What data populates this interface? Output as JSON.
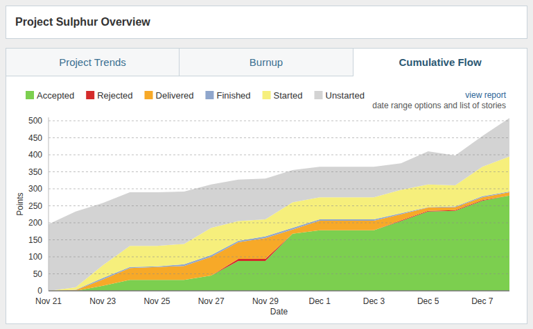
{
  "header": {
    "title": "Project Sulphur Overview"
  },
  "tabs": [
    {
      "label": "Project Trends",
      "active": false
    },
    {
      "label": "Burnup",
      "active": false
    },
    {
      "label": "Cumulative Flow",
      "active": true
    }
  ],
  "report_link": {
    "label": "view report",
    "note": "date range options and list of stories"
  },
  "chart_data": {
    "type": "area",
    "stacked": true,
    "x_label": "Date",
    "y_label": "Points",
    "categories": [
      "Nov 21",
      null,
      "Nov 23",
      null,
      "Nov 25",
      null,
      "Nov 27",
      null,
      "Nov 29",
      null,
      "Dec 1",
      null,
      "Dec 3",
      null,
      "Dec 5",
      null,
      "Dec 7",
      null
    ],
    "series": [
      {
        "name": "Accepted",
        "color": "#7ccf4f",
        "values": [
          0,
          0,
          15,
          32,
          32,
          32,
          45,
          88,
          88,
          168,
          178,
          178,
          178,
          205,
          233,
          235,
          265,
          280
        ]
      },
      {
        "name": "Rejected",
        "color": "#d42b2b",
        "values": [
          0,
          0,
          0,
          0,
          0,
          0,
          0,
          6,
          6,
          0,
          0,
          0,
          0,
          2,
          2,
          2,
          2,
          0
        ]
      },
      {
        "name": "Delivered",
        "color": "#f7a928",
        "values": [
          0,
          2,
          18,
          35,
          38,
          41,
          55,
          49,
          61,
          12,
          28,
          28,
          28,
          18,
          10,
          9,
          8,
          10
        ]
      },
      {
        "name": "Finished",
        "color": "#8fa6cc",
        "values": [
          0,
          1,
          5,
          3,
          2,
          5,
          5,
          4,
          5,
          5,
          4,
          4,
          4,
          3,
          1,
          2,
          3,
          2
        ]
      },
      {
        "name": "Started",
        "color": "#f6ef7c",
        "values": [
          0,
          7,
          37,
          62,
          60,
          60,
          80,
          58,
          50,
          75,
          65,
          65,
          65,
          69,
          67,
          62,
          87,
          103
        ]
      },
      {
        "name": "Unstarted",
        "color": "#d3d3d3",
        "values": [
          196,
          223,
          183,
          158,
          158,
          154,
          128,
          122,
          120,
          95,
          90,
          90,
          90,
          78,
          97,
          88,
          90,
          113
        ]
      }
    ],
    "ylim": [
      0,
      510
    ],
    "yticks": [
      0,
      50,
      100,
      150,
      200,
      250,
      300,
      350,
      400,
      450,
      500
    ],
    "grid": true,
    "legend": "top-left"
  }
}
